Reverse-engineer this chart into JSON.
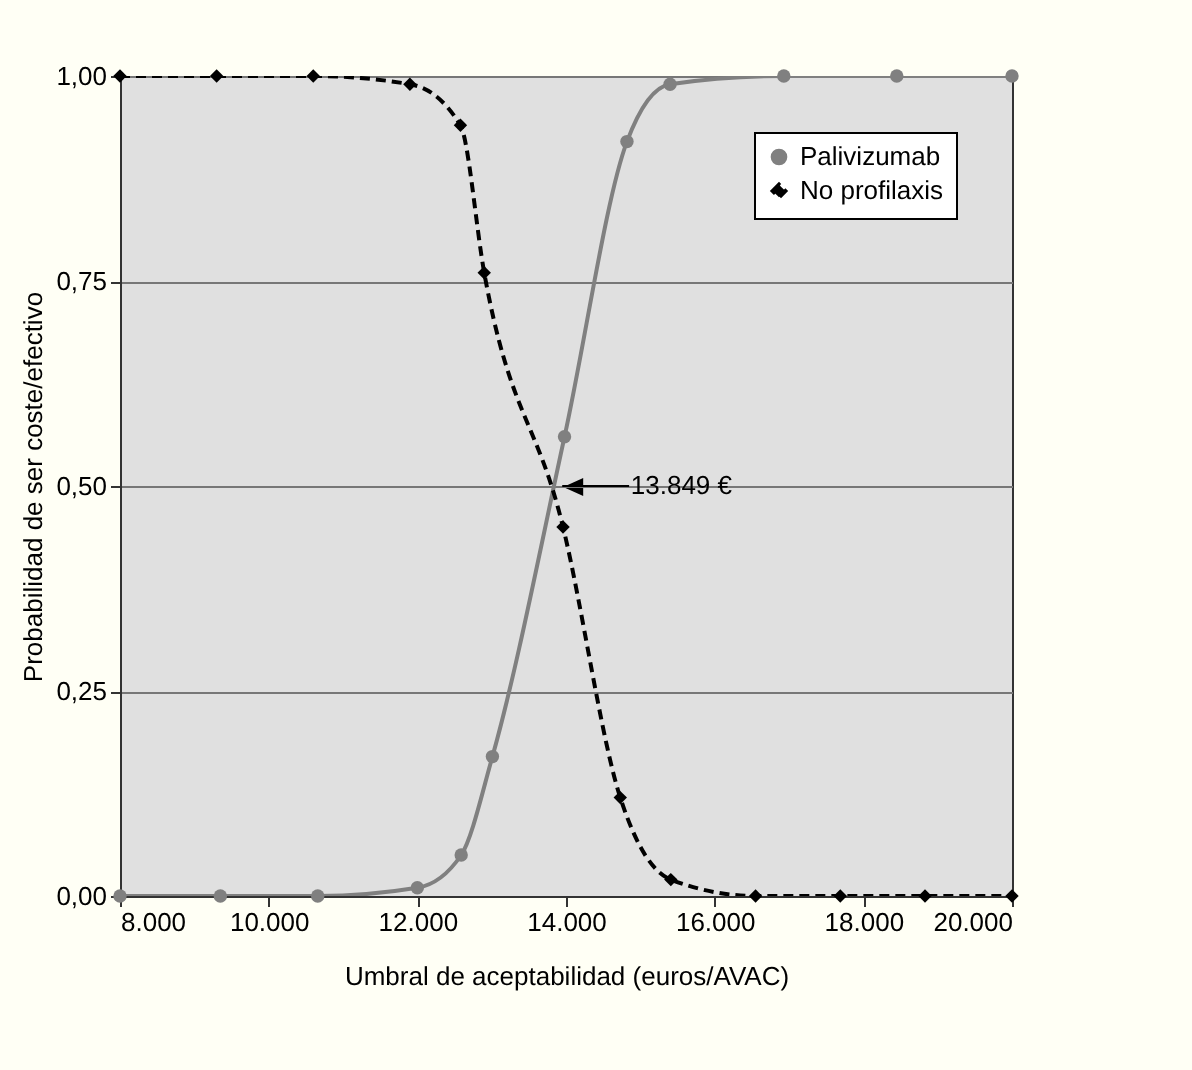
{
  "chart_data": {
    "type": "line",
    "xlabel": "Umbral de aceptabilidad (euros/AVAC)",
    "ylabel": "Probabilidad de ser coste/efectivo",
    "xlim": [
      8000,
      20000
    ],
    "ylim": [
      0,
      1
    ],
    "xticks": [
      {
        "value": 8000,
        "label": "8.000"
      },
      {
        "value": 10000,
        "label": "10.000"
      },
      {
        "value": 12000,
        "label": "12.000"
      },
      {
        "value": 14000,
        "label": "14.000"
      },
      {
        "value": 16000,
        "label": "16.000"
      },
      {
        "value": 18000,
        "label": "18.000"
      },
      {
        "value": 20000,
        "label": "20.000"
      }
    ],
    "yticks": [
      {
        "value": 0,
        "label": "0,00"
      },
      {
        "value": 0.25,
        "label": "0,25"
      },
      {
        "value": 0.5,
        "label": "0,50"
      },
      {
        "value": 0.75,
        "label": "0,75"
      },
      {
        "value": 1,
        "label": "1,00"
      }
    ],
    "grid": "y",
    "legend": "top right",
    "series": [
      {
        "name": "Palivizumab",
        "color": "#808080",
        "marker": "circle",
        "line_style": "solid",
        "x": [
          8000,
          9350,
          10660,
          12000,
          12590,
          13010,
          13980,
          14820,
          15400,
          16930,
          18450,
          20000
        ],
        "values": [
          0,
          0,
          0,
          0.01,
          0.05,
          0.17,
          0.56,
          0.92,
          0.99,
          1,
          1,
          1
        ]
      },
      {
        "name": "No profilaxis",
        "color": "#000000",
        "marker": "diamond",
        "line_style": "dashed",
        "x": [
          8000,
          9300,
          10600,
          11900,
          12580,
          12900,
          13960,
          14730,
          15410,
          16550,
          17690,
          18830,
          20000
        ],
        "values": [
          1,
          1,
          1,
          0.99,
          0.94,
          0.76,
          0.45,
          0.12,
          0.02,
          0,
          0,
          0,
          0
        ]
      }
    ],
    "annotations": [
      {
        "text": "13.849 €",
        "x": 13849,
        "y": 0.5
      }
    ]
  }
}
